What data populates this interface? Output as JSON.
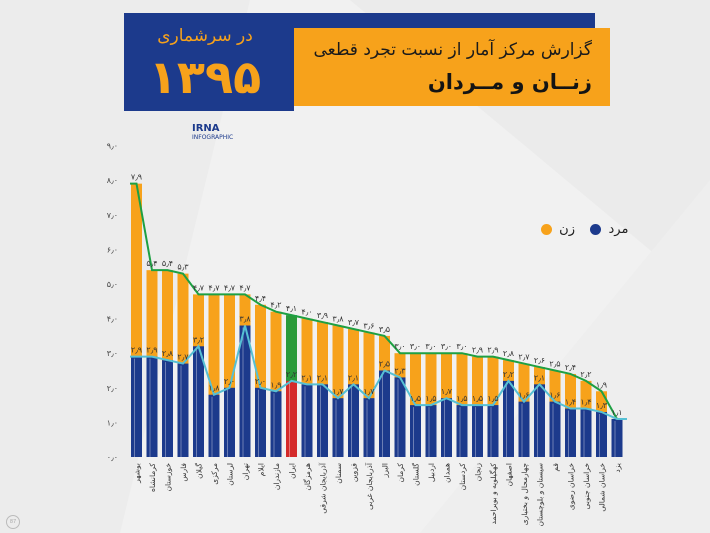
{
  "header": {
    "census_label": "در سرشماری",
    "year": "۱۳۹۵",
    "title_line1": "گزارش مرکز آمار از نسبت تجرد قطعی",
    "title_line2": "زنــان و مــردان",
    "logo_text": "IRNA",
    "logo_sub": "INFOGRAPHIC"
  },
  "legend": {
    "women_label": "زن",
    "men_label": "مرد"
  },
  "colors": {
    "women": "#f7a21b",
    "men": "#1c3a8c",
    "women_line": "#1ea043",
    "men_line": "#56c0d4",
    "iran_women": "#2a9a3a",
    "iran_men": "#d42a2a"
  },
  "chart_data": {
    "type": "bar",
    "title": "گزارش مرکز آمار از نسبت تجرد قطعی زنان و مردان",
    "ylim": [
      0,
      9
    ],
    "yticks": [
      "۰٫۰",
      "۱٫۰",
      "۲٫۰",
      "۳٫۰",
      "۴٫۰",
      "۵٫۰",
      "۶٫۰",
      "۷٫۰",
      "۸٫۰",
      "۹٫۰"
    ],
    "grid": false,
    "legend_position": "right",
    "categories": [
      "بوشهر",
      "کرمانشاه",
      "خوزستان",
      "فارس",
      "گیلان",
      "مرکزی",
      "لرستان",
      "تهران",
      "ایلام",
      "مازندران",
      "ایران",
      "هرمزگان",
      "آذربایجان شرقی",
      "سمنان",
      "قزوین",
      "آذربایجان غربی",
      "البرز",
      "کرمان",
      "گلستان",
      "اردبیل",
      "همدان",
      "کردستان",
      "زنجان",
      "کهگیلویه و بویراحمد",
      "اصفهان",
      "چهارمحال و بختیاری",
      "سیستان و بلوچستان",
      "قم",
      "خراسان رضوی",
      "خراسان جنوبی",
      "خراسان شمالی",
      "یزد"
    ],
    "highlight_category": "ایران",
    "series": [
      {
        "name": "زن",
        "values": [
          7.9,
          5.4,
          5.4,
          5.3,
          4.7,
          4.7,
          4.7,
          4.7,
          4.4,
          4.2,
          4.1,
          4.0,
          3.9,
          3.8,
          3.7,
          3.6,
          3.5,
          3.0,
          3.0,
          3.0,
          3.0,
          3.0,
          2.9,
          2.9,
          2.8,
          2.7,
          2.6,
          2.5,
          2.4,
          2.2,
          1.9,
          1.1
        ],
        "labels": [
          "۷٫۹",
          "۵٫۴",
          "۵٫۴",
          "۵٫۳",
          "۴٫۷",
          "۴٫۷",
          "۴٫۷",
          "۴٫۷",
          "۴٫۴",
          "۴٫۲",
          "۴٫۱",
          "۴٫۰",
          "۳٫۹",
          "۳٫۸",
          "۳٫۷",
          "۳٫۶",
          "۳٫۵",
          "۳٫۰",
          "۳٫۰",
          "۳٫۰",
          "۳٫۰",
          "۳٫۰",
          "۲٫۹",
          "۲٫۹",
          "۲٫۸",
          "۲٫۷",
          "۲٫۶",
          "۲٫۵",
          "۲٫۴",
          "۲٫۲",
          "۱٫۹",
          ""
        ]
      },
      {
        "name": "مرد",
        "values": [
          2.9,
          2.9,
          2.8,
          2.7,
          3.2,
          1.8,
          2.0,
          3.8,
          2.0,
          1.9,
          2.2,
          2.1,
          2.1,
          1.7,
          2.1,
          1.7,
          2.5,
          2.3,
          1.5,
          1.5,
          1.7,
          1.5,
          1.5,
          1.5,
          2.2,
          1.6,
          2.1,
          1.6,
          1.4,
          1.4,
          1.3,
          1.1
        ],
        "labels": [
          "۲٫۹",
          "۲٫۹",
          "۲٫۸",
          "۲٫۷",
          "۳٫۲",
          "۱٫۸",
          "۲٫۰",
          "۳٫۸",
          "۲٫۰",
          "۱٫۹",
          "۲٫۲",
          "۲٫۱",
          "۲٫۱",
          "۱٫۷",
          "۲٫۱",
          "۱٫۷",
          "۲٫۵",
          "۲٫۳",
          "۱٫۵",
          "۱٫۵",
          "۱٫۷",
          "۱٫۵",
          "۱٫۵",
          "۱٫۵",
          "۲٫۲",
          "۱٫۶",
          "۲٫۱",
          "۱٫۶",
          "۱٫۴",
          "۱٫۴",
          "۱٫۳",
          "۱٫۱"
        ]
      }
    ]
  }
}
